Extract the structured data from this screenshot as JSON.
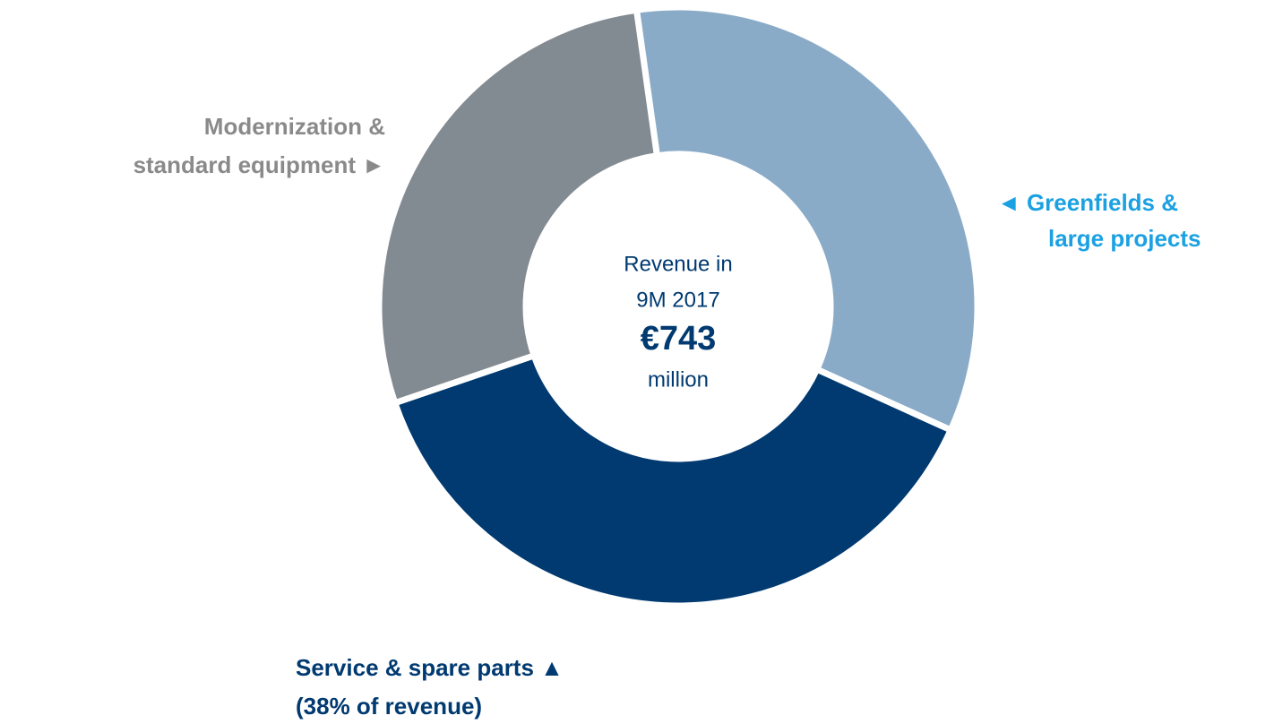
{
  "chart_data": {
    "type": "pie",
    "donut": true,
    "categories": [
      [
        "◄  Greenfields &",
        "large projects"
      ],
      [
        "Service & spare parts ▲",
        "(38% of revenue)"
      ],
      [
        "Modernization &",
        "standard equipment  ►"
      ]
    ],
    "values": [
      34,
      38,
      28
    ],
    "colors": [
      "#8aabc8",
      "#003a70",
      "#828a92"
    ],
    "label_colors": [
      "#1ba1e2",
      "#003a70",
      "#8a8a8a"
    ],
    "center_text": [
      "Revenue in",
      "9M 2017",
      "€743",
      "million"
    ]
  }
}
